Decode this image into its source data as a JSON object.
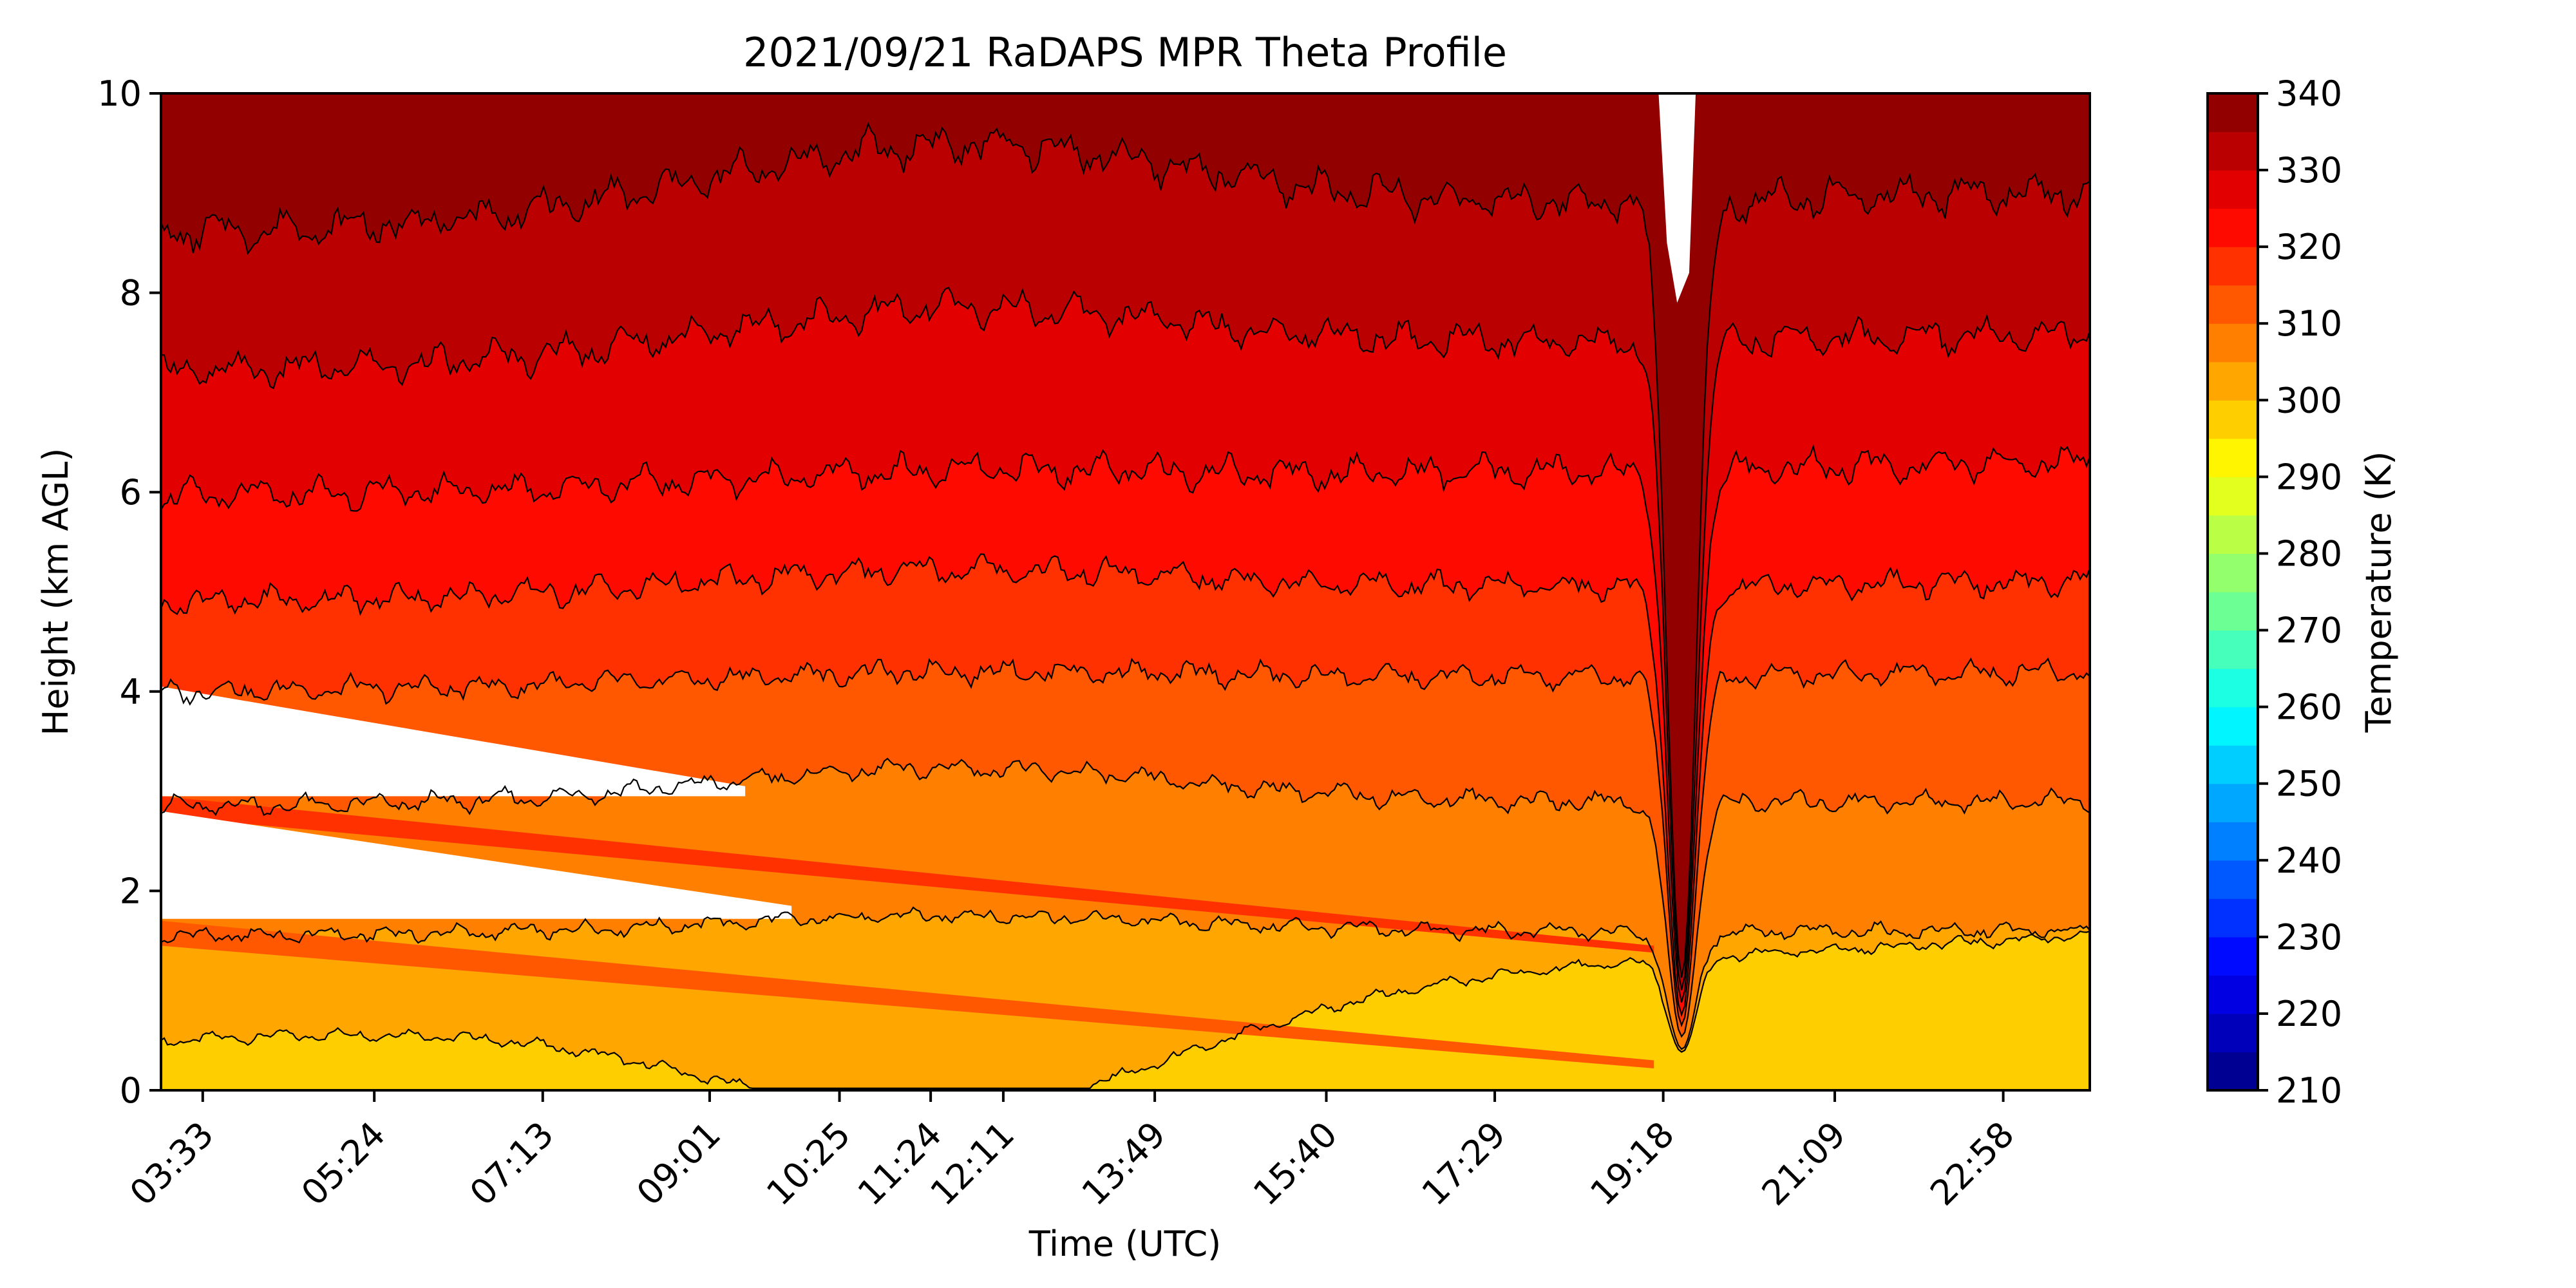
{
  "chart_data": {
    "type": "heatmap",
    "title": "2021/09/21 RaDAPS MPR Theta Profile",
    "xlabel": "Time (UTC)",
    "ylabel": "Height (km AGL)",
    "colorbar_label": "Temperature (K)",
    "xlim_hours": [
      3.1,
      23.9
    ],
    "x_ticks": [
      "03:33",
      "05:24",
      "07:13",
      "09:01",
      "10:25",
      "11:24",
      "12:11",
      "13:49",
      "15:40",
      "17:29",
      "19:18",
      "21:09",
      "22:58"
    ],
    "ylim": [
      0,
      10
    ],
    "y_ticks": [
      "0",
      "2",
      "4",
      "6",
      "8",
      "10"
    ],
    "color_range": [
      210,
      340
    ],
    "colorbar_ticks": [
      "210",
      "220",
      "230",
      "240",
      "250",
      "260",
      "270",
      "280",
      "290",
      "300",
      "310",
      "320",
      "330",
      "340"
    ],
    "contour_levels": [
      300,
      305,
      310,
      315,
      320,
      325,
      330,
      335
    ],
    "contour_heights_km": [
      {
        "level": 300,
        "start": 0.5,
        "end": 1.55,
        "peak_mid": 0.6
      },
      {
        "level": 305,
        "start": 1.55,
        "end": 1.6,
        "peak_mid": 1.75
      },
      {
        "level": 310,
        "start": 2.85,
        "end": 2.9,
        "peak_mid": 3.2
      },
      {
        "level": 315,
        "start": 4.0,
        "end": 4.2,
        "peak_mid": 4.3
      },
      {
        "level": 320,
        "start": 4.9,
        "end": 5.1,
        "peak_mid": 5.3
      },
      {
        "level": 325,
        "start": 5.95,
        "end": 6.3,
        "peak_mid": 6.4
      },
      {
        "level": 330,
        "start": 7.2,
        "end": 7.6,
        "peak_mid": 8.0
      },
      {
        "level": 335,
        "start": 8.6,
        "end": 9.0,
        "peak_mid": 9.6
      }
    ],
    "notable_features": {
      "dip_time_hours": 19.5,
      "missing_data": "white wedge regions near 2–4 km before about 09:30 and at top near 19:20"
    },
    "grid": false,
    "legend": "colorbar-right"
  }
}
